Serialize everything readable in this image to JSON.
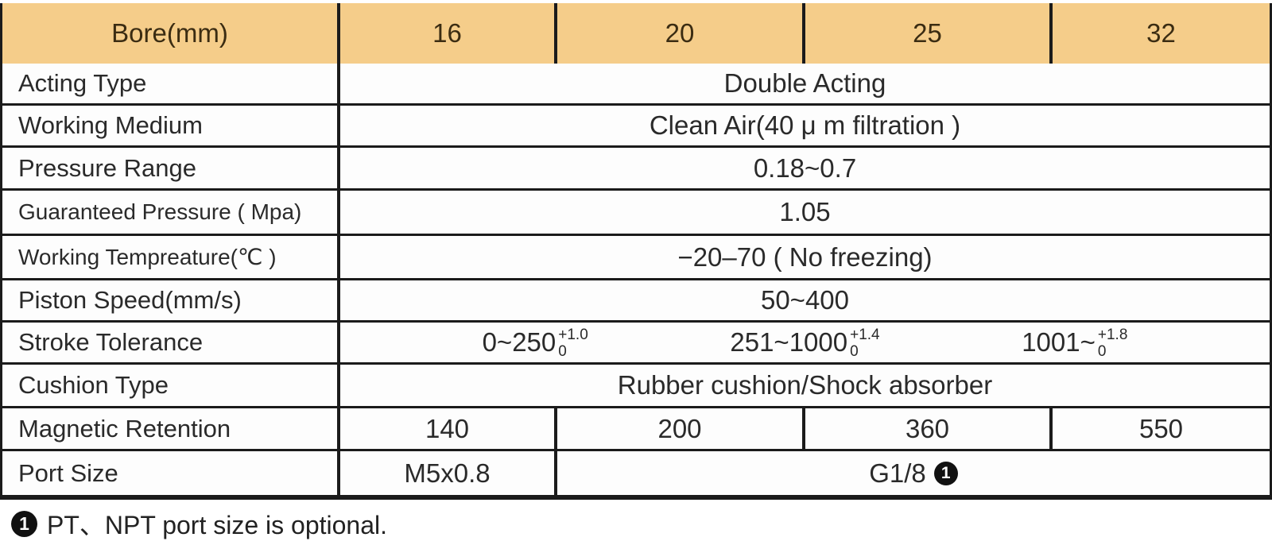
{
  "colors": {
    "header_bg": "#f5cd8a",
    "header_text": "#3b2c12",
    "border": "#1b1b1b",
    "body_text": "#2a2a2a"
  },
  "table": {
    "header": {
      "label": "Bore(mm)",
      "columns": [
        "16",
        "20",
        "25",
        "32"
      ]
    },
    "rows": [
      {
        "label": "Acting Type",
        "value": "Double Acting"
      },
      {
        "label": "Working Medium",
        "value": "Clean Air(40 μ m filtration )"
      },
      {
        "label": "Pressure Range",
        "value": "0.18~0.7"
      },
      {
        "label": "Guaranteed Pressure ( Mpa)",
        "value": "1.05"
      },
      {
        "label": "Working Tempreature(℃ )",
        "value": "−20–70 ( No freezing)"
      },
      {
        "label": "Piston Speed(mm/s)",
        "value": "50~400"
      }
    ],
    "stroke_tolerance": {
      "label": "Stroke Tolerance",
      "entries": [
        {
          "base": "0~250",
          "sup": "+1.0",
          "sub": "0"
        },
        {
          "base": "251~1000",
          "sup": "+1.4",
          "sub": "0"
        },
        {
          "base": "1001~",
          "sup": "+1.8",
          "sub": "0"
        }
      ]
    },
    "cushion_row": {
      "label": "Cushion Type",
      "value": "Rubber cushion/Shock absorber"
    },
    "magnetic_row": {
      "label": "Magnetic Retention",
      "values": [
        "140",
        "200",
        "360",
        "550"
      ]
    },
    "port_row": {
      "label": "Port Size",
      "value_bore16": "M5x0.8",
      "value_rest": "G1/8",
      "marker": "1"
    }
  },
  "footnote": {
    "marker": "1",
    "text": "PT、NPT port size is optional."
  }
}
